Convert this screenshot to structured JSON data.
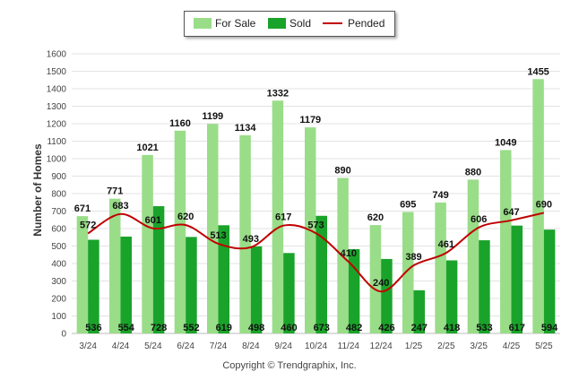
{
  "legend": {
    "for_sale": "For Sale",
    "sold": "Sold",
    "pended": "Pended"
  },
  "copyright": "Copyright © Trendgraphix, Inc.",
  "colors": {
    "for_sale": "#99dd88",
    "sold": "#1aa32a",
    "pended": "#c00000",
    "grid": "#e3e3e3",
    "axis_text": "#444444"
  },
  "chart_data": {
    "type": "bar",
    "title": "",
    "xlabel": "",
    "ylabel": "Number of Homes",
    "ylim": [
      0,
      1600
    ],
    "yticks": [
      0,
      100,
      200,
      300,
      400,
      500,
      600,
      700,
      800,
      900,
      1000,
      1100,
      1200,
      1300,
      1400,
      1500,
      1600
    ],
    "grid": true,
    "legend_position": "top-center",
    "categories": [
      "3/24",
      "4/24",
      "5/24",
      "6/24",
      "7/24",
      "8/24",
      "9/24",
      "10/24",
      "11/24",
      "12/24",
      "1/25",
      "2/25",
      "3/25",
      "4/25",
      "5/25"
    ],
    "series": [
      {
        "name": "For Sale",
        "type": "bar",
        "values": [
          671,
          771,
          1021,
          1160,
          1199,
          1134,
          1332,
          1179,
          890,
          620,
          695,
          749,
          880,
          1049,
          1455
        ]
      },
      {
        "name": "Sold",
        "type": "bar",
        "values": [
          536,
          554,
          728,
          552,
          619,
          498,
          460,
          673,
          482,
          426,
          247,
          418,
          533,
          617,
          594
        ]
      },
      {
        "name": "Pended",
        "type": "line",
        "values": [
          572,
          683,
          601,
          620,
          513,
          493,
          617,
          573,
          410,
          240,
          389,
          461,
          606,
          647,
          690
        ]
      }
    ]
  }
}
